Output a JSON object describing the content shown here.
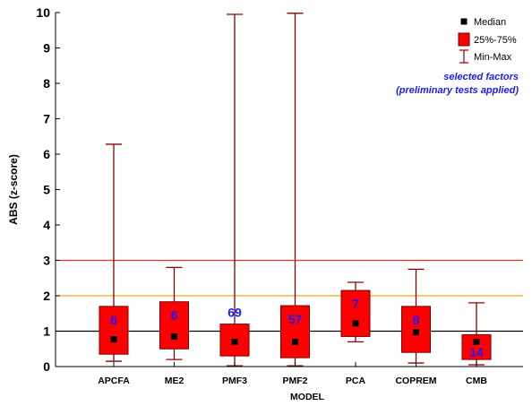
{
  "chart_data": {
    "type": "boxplot",
    "xlabel": "MODEL",
    "ylabel": "ABS (z-score)",
    "ylim": [
      0,
      10
    ],
    "yticks": [
      0,
      1,
      2,
      3,
      4,
      5,
      6,
      7,
      8,
      9,
      10
    ],
    "categories": [
      "APCFA",
      "ME2",
      "PMF3",
      "PMF2",
      "PCA",
      "COPREM",
      "CMB"
    ],
    "series": [
      {
        "category": "APCFA",
        "min": 0.15,
        "q1": 0.35,
        "median": 0.77,
        "q3": 1.7,
        "max": 6.28,
        "n": "6"
      },
      {
        "category": "ME2",
        "min": 0.2,
        "q1": 0.5,
        "median": 0.85,
        "q3": 1.83,
        "max": 2.8,
        "n": "6"
      },
      {
        "category": "PMF3",
        "min": 0.02,
        "q1": 0.3,
        "median": 0.7,
        "q3": 1.2,
        "max": 9.95,
        "n": "69"
      },
      {
        "category": "PMF2",
        "min": 0.02,
        "q1": 0.25,
        "median": 0.7,
        "q3": 1.72,
        "max": 9.98,
        "n": "57"
      },
      {
        "category": "PCA",
        "min": 0.7,
        "q1": 0.85,
        "median": 1.22,
        "q3": 2.15,
        "max": 2.38,
        "n": "7"
      },
      {
        "category": "COPREM",
        "min": 0.1,
        "q1": 0.4,
        "median": 0.97,
        "q3": 1.7,
        "max": 2.75,
        "n": "8"
      },
      {
        "category": "CMB",
        "min": 0.05,
        "q1": 0.2,
        "median": 0.7,
        "q3": 0.9,
        "max": 1.8,
        "n": "14"
      }
    ],
    "reference_lines": [
      {
        "y": 3,
        "color": "#e8302a"
      },
      {
        "y": 2,
        "color": "#f5a623"
      },
      {
        "y": 1,
        "color": "#000000"
      }
    ],
    "legend": {
      "position": "top-right",
      "items": [
        {
          "label": "Median",
          "symbol": "square"
        },
        {
          "label": "25%-75%",
          "symbol": "box"
        },
        {
          "label": "Min-Max",
          "symbol": "whisker"
        }
      ],
      "note": [
        "selected factors",
        "(preliminary tests applied)"
      ]
    },
    "colors": {
      "box_fill": "#ff0000",
      "box_stroke": "#7a0000",
      "whisker": "#8b0000",
      "median": "#000000",
      "n_label": "#1a1aff"
    },
    "grid": false
  }
}
